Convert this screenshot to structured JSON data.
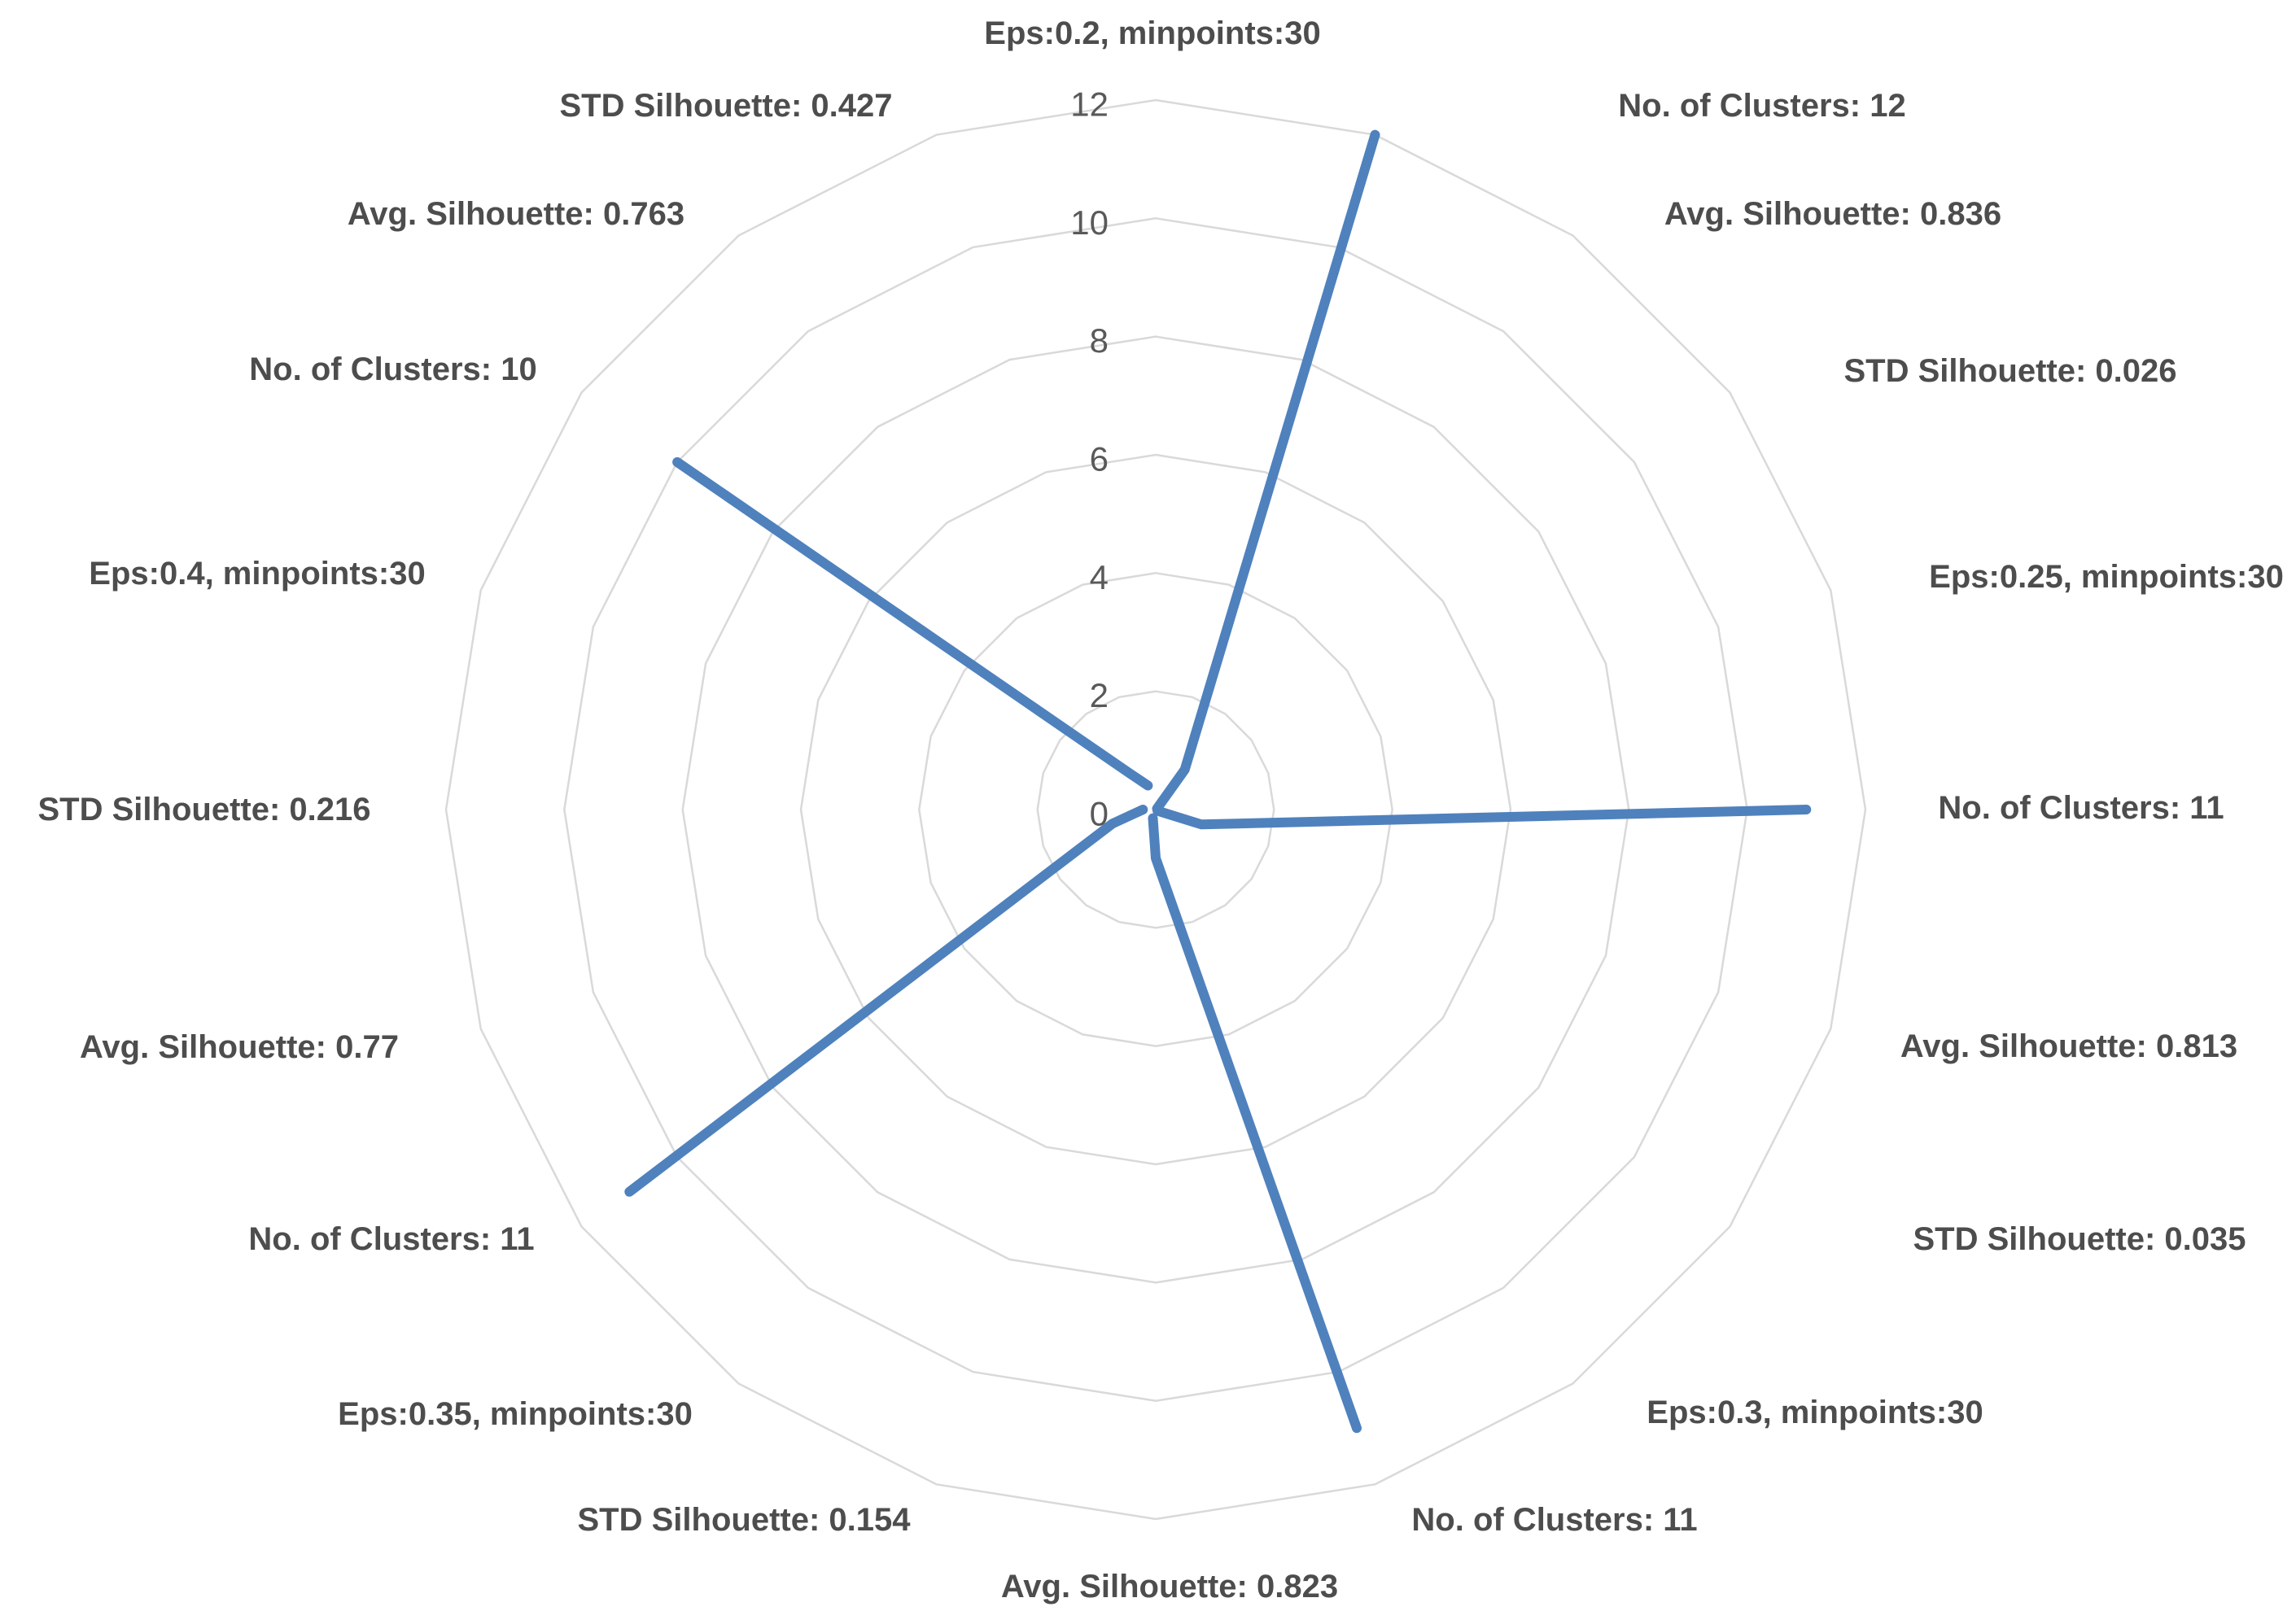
{
  "chart_data": {
    "type": "radar",
    "title": "",
    "legend": "none",
    "grid": "concentric-rings-only",
    "categories": [
      "Eps:0.2, minpoints:30",
      "No. of Clusters: 12",
      "Avg. Silhouette: 0.836",
      "STD Silhouette: 0.026",
      "Eps:0.25, minpoints:30",
      "No. of Clusters: 11",
      "Avg. Silhouette: 0.813",
      "STD Silhouette: 0.035",
      "Eps:0.3, minpoints:30",
      "No. of Clusters: 11",
      "Avg. Silhouette: 0.823",
      "STD Silhouette: 0.154",
      "Eps:0.35, minpoints:30",
      "No. of Clusters: 11",
      "Avg. Silhouette: 0.77",
      "STD Silhouette: 0.216",
      "Eps:0.4, minpoints:30",
      "No. of Clusters: 10",
      "Avg. Silhouette: 0.763",
      "STD Silhouette: 0.427"
    ],
    "series": [
      {
        "values": [
          null,
          12,
          0.836,
          0.026,
          null,
          11,
          0.813,
          0.035,
          null,
          11,
          0.823,
          0.154,
          null,
          11,
          0.77,
          0.216,
          null,
          10,
          0.763,
          0.427
        ]
      }
    ],
    "radial_axis": {
      "min": 0,
      "max": 12,
      "tick_interval": 2,
      "tick_values": [
        0,
        2,
        4,
        6,
        8,
        10,
        12
      ],
      "tick_labels": [
        "0",
        "2",
        "4",
        "6",
        "8",
        "10",
        "12"
      ]
    },
    "parameter_sets": [
      {
        "eps": "0.2",
        "minpoints": "30",
        "clusters": "12",
        "avg_silhouette": "0.836",
        "std_silhouette": "0.026"
      },
      {
        "eps": "0.25",
        "minpoints": "30",
        "clusters": "11",
        "avg_silhouette": "0.813",
        "std_silhouette": "0.035"
      },
      {
        "eps": "0.3",
        "minpoints": "30",
        "clusters": "11",
        "avg_silhouette": "0.823",
        "std_silhouette": "0.154"
      },
      {
        "eps": "0.35",
        "minpoints": "30",
        "clusters": "11",
        "avg_silhouette": "0.77",
        "std_silhouette": "0.216"
      },
      {
        "eps": "0.4",
        "minpoints": "30",
        "clusters": "10",
        "avg_silhouette": "0.763",
        "std_silhouette": "0.427"
      }
    ],
    "colors": {
      "series": "#4F81BD",
      "grid": "#D9D9D9",
      "category_label": "#4D4D4D",
      "tick_label": "#595959",
      "background": "#FFFFFF"
    }
  }
}
